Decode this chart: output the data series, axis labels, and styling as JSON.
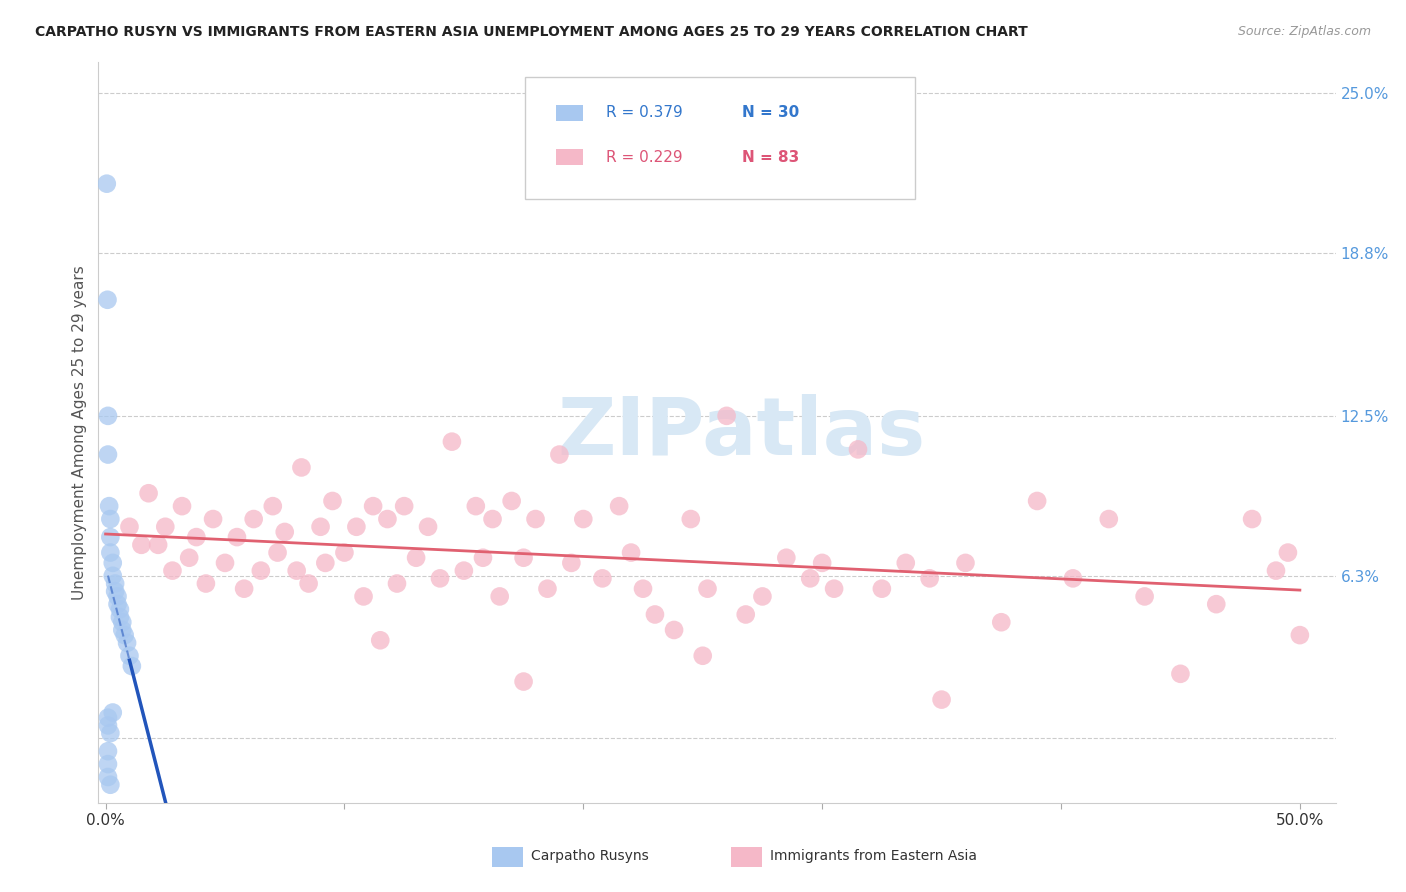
{
  "title": "CARPATHO RUSYN VS IMMIGRANTS FROM EASTERN ASIA UNEMPLOYMENT AMONG AGES 25 TO 29 YEARS CORRELATION CHART",
  "source": "Source: ZipAtlas.com",
  "ylabel": "Unemployment Among Ages 25 to 29 years",
  "right_yticks": [
    0.0,
    0.063,
    0.125,
    0.188,
    0.25
  ],
  "right_yticklabels": [
    "",
    "6.3%",
    "12.5%",
    "18.8%",
    "25.0%"
  ],
  "xmin": -0.003,
  "xmax": 0.515,
  "ymin": -0.025,
  "ymax": 0.262,
  "blue_R": 0.379,
  "blue_N": 30,
  "pink_R": 0.229,
  "pink_N": 83,
  "blue_color": "#a8c8f0",
  "pink_color": "#f5b8c8",
  "blue_line_color": "#2255bb",
  "pink_line_color": "#e06070",
  "watermark_color": "#d8e8f5",
  "blue_scatter_x": [
    0.0005,
    0.0008,
    0.001,
    0.001,
    0.0015,
    0.002,
    0.002,
    0.002,
    0.003,
    0.003,
    0.004,
    0.004,
    0.005,
    0.005,
    0.006,
    0.006,
    0.007,
    0.007,
    0.008,
    0.009,
    0.01,
    0.011,
    0.001,
    0.001,
    0.002,
    0.003,
    0.001,
    0.001,
    0.001,
    0.002
  ],
  "blue_scatter_y": [
    0.215,
    0.17,
    0.125,
    0.11,
    0.09,
    0.085,
    0.078,
    0.072,
    0.068,
    0.063,
    0.06,
    0.057,
    0.055,
    0.052,
    0.05,
    0.047,
    0.045,
    0.042,
    0.04,
    0.037,
    0.032,
    0.028,
    0.008,
    0.005,
    0.002,
    0.01,
    -0.005,
    -0.01,
    -0.015,
    -0.018
  ],
  "pink_scatter_x": [
    0.01,
    0.015,
    0.018,
    0.022,
    0.025,
    0.028,
    0.032,
    0.035,
    0.038,
    0.042,
    0.045,
    0.05,
    0.055,
    0.058,
    0.062,
    0.065,
    0.07,
    0.072,
    0.075,
    0.08,
    0.082,
    0.085,
    0.09,
    0.092,
    0.095,
    0.1,
    0.105,
    0.108,
    0.112,
    0.115,
    0.118,
    0.122,
    0.125,
    0.13,
    0.135,
    0.14,
    0.145,
    0.15,
    0.155,
    0.158,
    0.162,
    0.165,
    0.17,
    0.175,
    0.18,
    0.185,
    0.19,
    0.195,
    0.2,
    0.208,
    0.215,
    0.22,
    0.225,
    0.23,
    0.238,
    0.245,
    0.252,
    0.26,
    0.268,
    0.275,
    0.285,
    0.295,
    0.305,
    0.315,
    0.325,
    0.335,
    0.345,
    0.36,
    0.375,
    0.39,
    0.405,
    0.42,
    0.435,
    0.45,
    0.465,
    0.48,
    0.495,
    0.3,
    0.35,
    0.25,
    0.175,
    0.49,
    0.5
  ],
  "pink_scatter_y": [
    0.082,
    0.075,
    0.095,
    0.075,
    0.082,
    0.065,
    0.09,
    0.07,
    0.078,
    0.06,
    0.085,
    0.068,
    0.078,
    0.058,
    0.085,
    0.065,
    0.09,
    0.072,
    0.08,
    0.065,
    0.105,
    0.06,
    0.082,
    0.068,
    0.092,
    0.072,
    0.082,
    0.055,
    0.09,
    0.038,
    0.085,
    0.06,
    0.09,
    0.07,
    0.082,
    0.062,
    0.115,
    0.065,
    0.09,
    0.07,
    0.085,
    0.055,
    0.092,
    0.07,
    0.085,
    0.058,
    0.11,
    0.068,
    0.085,
    0.062,
    0.09,
    0.072,
    0.058,
    0.048,
    0.042,
    0.085,
    0.058,
    0.125,
    0.048,
    0.055,
    0.07,
    0.062,
    0.058,
    0.112,
    0.058,
    0.068,
    0.062,
    0.068,
    0.045,
    0.092,
    0.062,
    0.085,
    0.055,
    0.025,
    0.052,
    0.085,
    0.072,
    0.068,
    0.015,
    0.032,
    0.022,
    0.065,
    0.04
  ]
}
